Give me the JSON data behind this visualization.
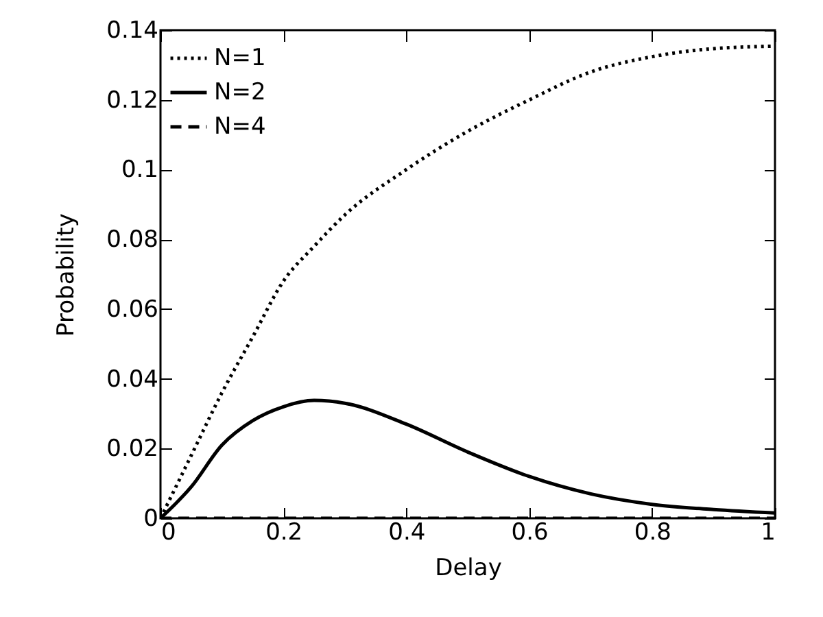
{
  "chart_data": {
    "type": "line",
    "xlabel": "Delay",
    "ylabel": "Probability",
    "x": [
      0,
      0.05,
      0.1,
      0.15,
      0.2,
      0.25,
      0.3,
      0.4,
      0.5,
      0.6,
      0.7,
      0.8,
      0.9,
      1
    ],
    "xlim": [
      0,
      1
    ],
    "xticks": [
      0,
      0.2,
      0.4,
      0.6,
      0.8,
      1
    ],
    "ylim": [
      0,
      0.14
    ],
    "yticks": [
      0,
      0.02,
      0.04,
      0.06,
      0.08,
      0.1,
      0.12,
      0.14
    ],
    "grid": false,
    "legend": "top left",
    "marker": "none",
    "series": [
      {
        "name": "N=1",
        "color": "#000000",
        "line_style": "dotted",
        "values": [
          0,
          0.018,
          0.036,
          0.052,
          0.068,
          0.078,
          0.087,
          0.1,
          0.111,
          0.12,
          0.128,
          0.1324,
          0.1347,
          0.1354
        ]
      },
      {
        "name": "N=2",
        "color": "#000000",
        "line_style": "solid",
        "values": [
          0,
          0.009,
          0.021,
          0.028,
          0.032,
          0.0338,
          0.033,
          0.027,
          0.019,
          0.012,
          0.007,
          0.004,
          0.0025,
          0.0015
        ]
      },
      {
        "name": "N=4",
        "color": "#000000",
        "line_style": "dashed",
        "values": [
          0,
          0,
          0,
          0,
          0,
          0,
          0,
          0,
          0,
          0,
          0,
          0,
          0,
          0
        ]
      }
    ]
  }
}
